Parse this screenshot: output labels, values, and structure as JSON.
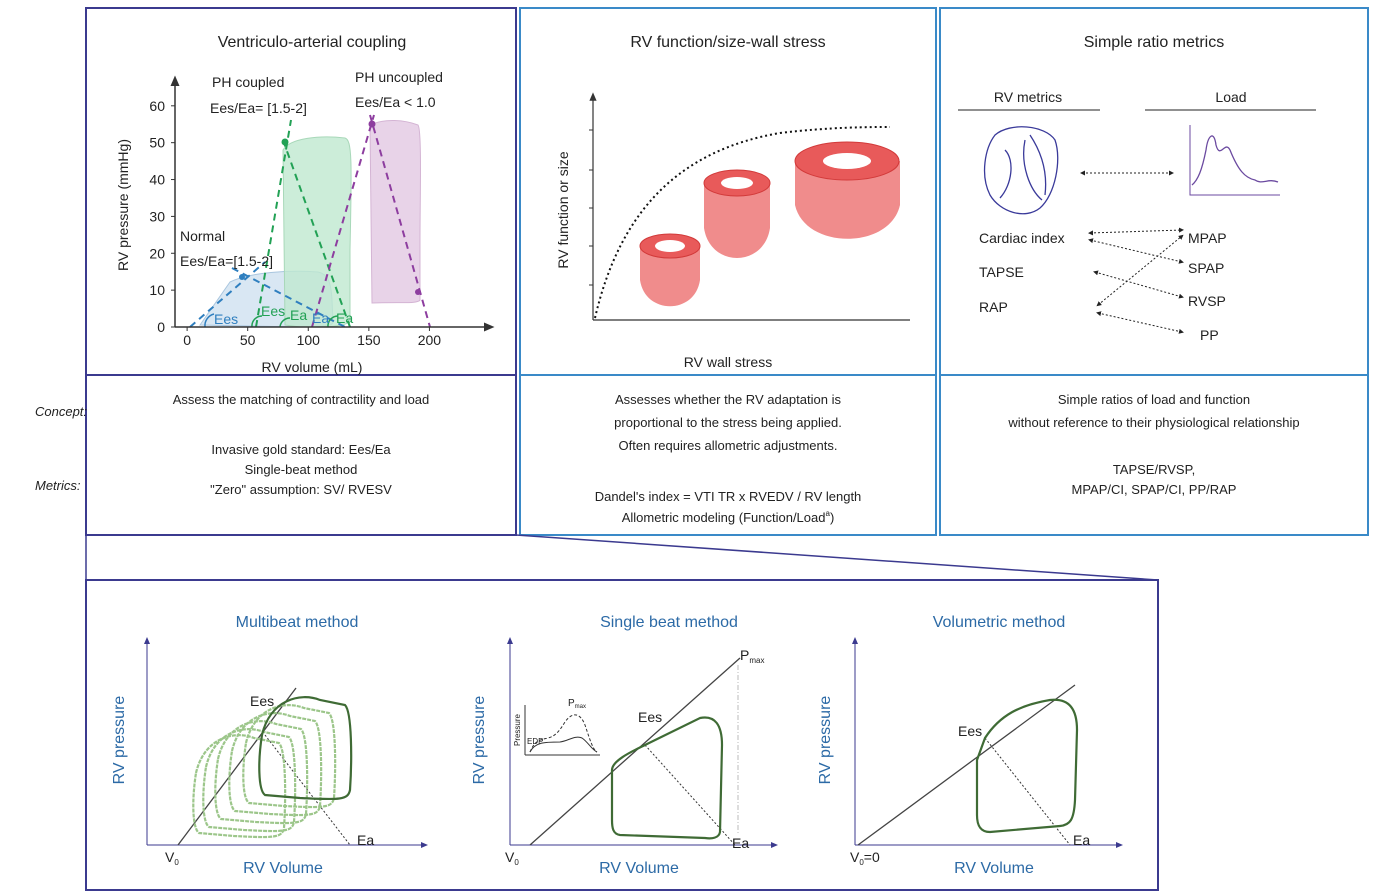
{
  "side_labels": {
    "concept": "Concept:",
    "metrics": "Metrics:"
  },
  "panels": [
    {
      "title": "Ventriculo-arterial coupling",
      "concept": [
        "Assess the matching of contractility and load"
      ],
      "metrics": [
        "Invasive gold standard: Ees/Ea",
        "Single-beat method",
        "\"Zero\" assumption: SV/ RVESV"
      ],
      "chart": {
        "xlabel": "RV volume (mL)",
        "ylabel": "RV pressure (mmHg)",
        "xlim": [
          -10,
          250
        ],
        "ylim": [
          0,
          67
        ],
        "xticks": [
          0,
          50,
          100,
          150,
          200
        ],
        "yticks": [
          0,
          10,
          20,
          30,
          40,
          50,
          60
        ],
        "annotations": {
          "ph_coupled": "PH coupled",
          "ph_coupled_ratio": "Ees/Ea= [1.5-2]",
          "ph_uncoupled": "PH uncoupled",
          "ph_uncoupled_ratio": "Ees/Ea < 1.0",
          "normal": "Normal",
          "normal_ratio": "Ees/Ea=[1.5-2]",
          "normal_ees": "Ees",
          "coupled_ees": "Ees",
          "coupled_ea": "Ea",
          "normal_ea": "Ea",
          "uncoupled_ea": "Ea"
        }
      }
    },
    {
      "title": "RV function/size-wall stress",
      "xlabel": "RV wall stress",
      "ylabel": "RV function or size",
      "concept": [
        "Assesses whether the RV adaptation is",
        "proportional to the stress being applied.",
        "Often requires allometric adjustments."
      ],
      "metrics": [
        "Dandel's index = VTI TR x RVEDV / RV length",
        {
          "text": "Allometric modeling (Function/Load",
          "sup": "a",
          "end": ")"
        }
      ]
    },
    {
      "title": "Simple ratio metrics",
      "rv_metrics": "RV metrics",
      "load": "Load",
      "rv_items": [
        "Cardiac index",
        "TAPSE",
        "RAP"
      ],
      "load_items": [
        "MPAP",
        "SPAP",
        "RVSP",
        "PP"
      ],
      "concept": [
        "Simple ratios of load and function",
        "without reference to their physiological relationship"
      ],
      "metrics": [
        "TAPSE/RVSP,",
        "MPAP/CI, SPAP/CI, PP/RAP"
      ]
    }
  ],
  "methods": [
    {
      "title": "Multibeat method",
      "ylabel": "RV pressure",
      "xlabel": "RV Volume",
      "ees": "Ees",
      "ea": "Ea",
      "v0": {
        "base": "V",
        "sub": "0"
      }
    },
    {
      "title": "Single beat method",
      "ylabel": "RV pressure",
      "xlabel": "RV Volume",
      "ees": "Ees",
      "ea": "Ea",
      "v0": {
        "base": "V",
        "sub": "0"
      },
      "pmax": {
        "base": "P",
        "sub": "max"
      },
      "inset": {
        "ylabel": "Pressure",
        "edp": "EDP",
        "pmax": {
          "base": "P",
          "sub": "max"
        }
      }
    },
    {
      "title": "Volumetric method",
      "ylabel": "RV pressure",
      "xlabel": "RV Volume",
      "ees": "Ees",
      "ea": "Ea",
      "v0": {
        "base": "V",
        "sub": "0",
        "end": "=0"
      }
    }
  ]
}
